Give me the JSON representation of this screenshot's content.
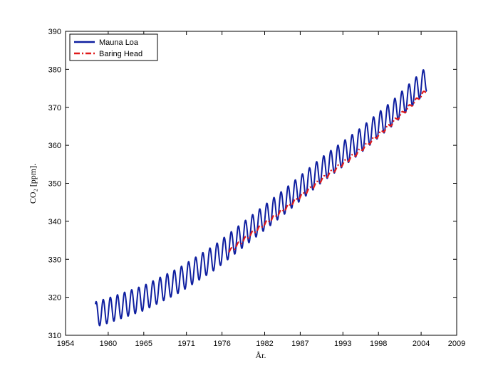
{
  "chart_data": {
    "type": "line",
    "xlabel": "År.",
    "ylabel": "CO₂ [ppm].",
    "xlim": [
      1954,
      2009
    ],
    "ylim": [
      310,
      390
    ],
    "xticks": [
      1954,
      1960,
      1965,
      1971,
      1976,
      1982,
      1987,
      1993,
      1998,
      2004,
      2009
    ],
    "yticks": [
      310,
      320,
      330,
      340,
      350,
      360,
      370,
      380,
      390
    ],
    "grid": false,
    "legend": "top-left",
    "series": [
      {
        "name": "Mauna Loa",
        "color": "#0f1fa0",
        "style": "solid",
        "start": 1958.2,
        "end": 2004.8,
        "trend": [
          [
            1958.2,
            315.5
          ],
          [
            1960,
            316.5
          ],
          [
            1965,
            319.8
          ],
          [
            1970,
            324.5
          ],
          [
            1975,
            330.5
          ],
          [
            1980,
            338.0
          ],
          [
            1985,
            345.5
          ],
          [
            1990,
            353.5
          ],
          [
            1995,
            360.5
          ],
          [
            2000,
            368.5
          ],
          [
            2004.8,
            377.5
          ]
        ],
        "seasonal_amplitude_ppm": 3.3,
        "period_years": 1
      },
      {
        "name": "Baring Head",
        "color": "#e01a1a",
        "style": "dash-dot",
        "start": 1977.0,
        "end": 2004.8,
        "trend": [
          [
            1977.0,
            332.0
          ],
          [
            1980,
            336.5
          ],
          [
            1985,
            343.5
          ],
          [
            1990,
            351.0
          ],
          [
            1995,
            358.0
          ],
          [
            2000,
            366.0
          ],
          [
            2004.8,
            374.5
          ]
        ],
        "seasonal_amplitude_ppm": 0.5,
        "period_years": 1
      }
    ]
  }
}
